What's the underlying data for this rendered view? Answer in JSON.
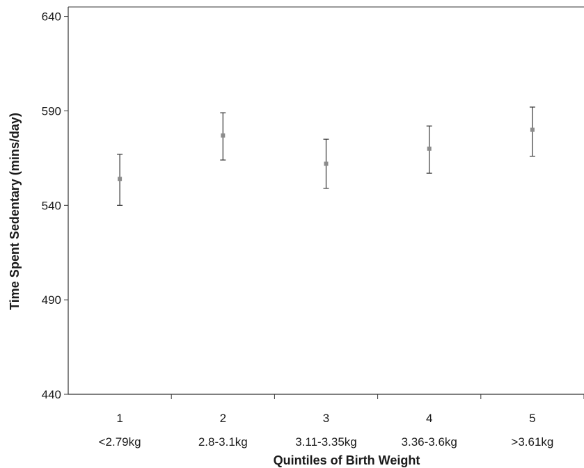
{
  "chart_data": {
    "type": "scatter",
    "subtype": "point-with-error-bars",
    "title": "",
    "xlabel": "Quintiles of Birth Weight",
    "ylabel": "Time Spent Sedentary (mins/day)",
    "ylim": [
      440,
      645
    ],
    "yticks": [
      440,
      490,
      540,
      590,
      640
    ],
    "ytick_labels": [
      "440",
      "490",
      "540",
      "590",
      "640"
    ],
    "categories": [
      "1",
      "2",
      "3",
      "4",
      "5"
    ],
    "category_sublabels": [
      "<2.79kg",
      "2.8-3.1kg",
      "3.11-3.35kg",
      "3.36-3.6kg",
      ">3.61kg"
    ],
    "values": [
      554,
      577,
      562,
      570,
      580
    ],
    "error_low": [
      540,
      564,
      549,
      557,
      566
    ],
    "error_high": [
      567,
      589,
      575,
      582,
      592
    ],
    "grid": false,
    "legend": "none",
    "colors": {
      "marker": "#8c8c8c",
      "errorbar": "#333333",
      "axis": "#333333"
    }
  }
}
